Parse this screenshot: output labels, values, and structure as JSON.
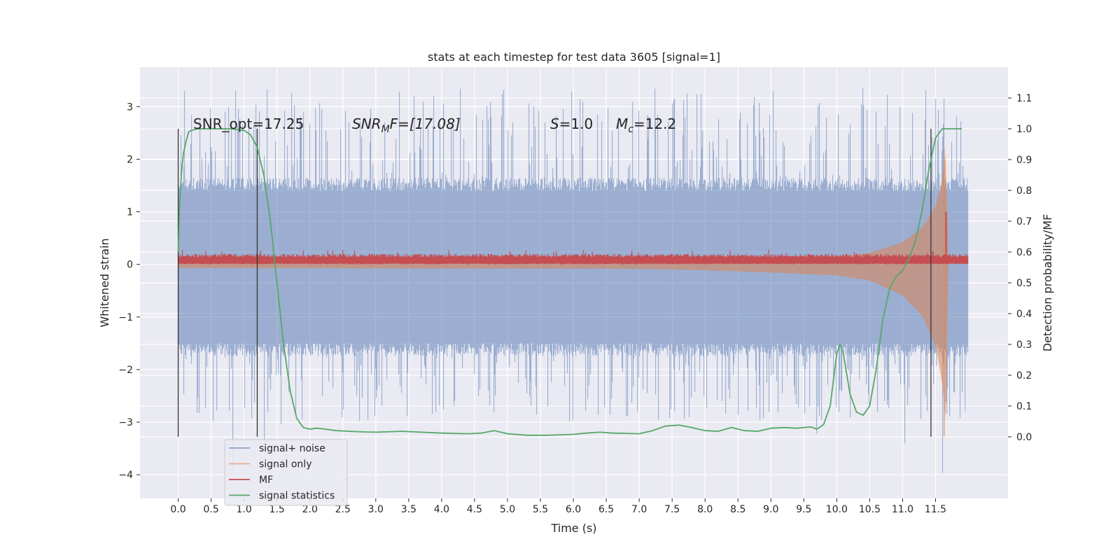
{
  "chart_data": {
    "type": "line",
    "title": "stats at each timestep for test data 3605 [signal=1]",
    "xlabel": "Time (s)",
    "ylabel": "Whitened strain",
    "y2label": "Detection probability/MF",
    "xlim": [
      -0.58,
      12.6
    ],
    "ylim": [
      -4.45,
      3.75
    ],
    "y2lim": [
      -0.2,
      1.2
    ],
    "x_ticks": [
      0.0,
      0.5,
      1.0,
      1.5,
      2.0,
      2.5,
      3.0,
      3.5,
      4.0,
      4.5,
      5.0,
      5.5,
      6.0,
      6.5,
      7.0,
      7.5,
      8.0,
      8.5,
      9.0,
      9.5,
      10.0,
      10.5,
      11.0,
      11.5
    ],
    "x_tick_labels": [
      "0.0",
      "0.5",
      "1.0",
      "1.5",
      "2.0",
      "2.5",
      "3.0",
      "3.5",
      "4.0",
      "4.5",
      "5.0",
      "5.5",
      "6.0",
      "6.5",
      "7.0",
      "7.5",
      "8.0",
      "8.5",
      "9.0",
      "9.5",
      "10.0",
      "10.5",
      "11.0",
      "11.5"
    ],
    "y_ticks": [
      3,
      2,
      1,
      0,
      -1,
      -2,
      -3,
      -4
    ],
    "y_tick_labels": [
      "3",
      "2",
      "1",
      "0",
      "−1",
      "−2",
      "−3",
      "−4"
    ],
    "y2_ticks": [
      1.1,
      1.0,
      0.9,
      0.8,
      0.7,
      0.6,
      0.5,
      0.4,
      0.3,
      0.2,
      0.1,
      0.0
    ],
    "y2_tick_labels": [
      "1.1",
      "1.0",
      "0.9",
      "0.8",
      "0.7",
      "0.6",
      "0.5",
      "0.4",
      "0.3",
      "0.2",
      "0.1",
      "0.0"
    ],
    "grid": true,
    "legend_position": "lower-left",
    "background": "#eaeaf2",
    "annotations": {
      "snr_opt": "SNR_opt=17.25",
      "snr_mf_main": "SNR",
      "snr_mf_sub": "M",
      "snr_mf_rest": "F=[17.08]",
      "s_main": "S",
      "s_rest": "=1.0",
      "mc_main": "M",
      "mc_sub": "c",
      "mc_rest": "=12.2"
    },
    "series": [
      {
        "name": "signal+ noise",
        "color": "#4c72b0",
        "axis": "left",
        "x_range": [
          0.0,
          11.99
        ],
        "envelope_typical": [
          -1.5,
          1.4
        ],
        "extremes": [
          -4.1,
          3.35
        ]
      },
      {
        "name": "signal only",
        "color": "#dd8452",
        "axis": "left",
        "x": [
          0.0,
          7.0,
          8.0,
          9.0,
          10.0,
          10.5,
          11.0,
          11.3,
          11.5,
          11.6,
          11.66,
          11.7
        ],
        "amplitude": [
          0.05,
          0.06,
          0.08,
          0.11,
          0.15,
          0.22,
          0.42,
          0.7,
          1.1,
          1.6,
          2.2,
          0.0
        ]
      },
      {
        "name": "MF",
        "color": "#c44e52",
        "axis": "left",
        "baseline": 0.08,
        "band": [
          0.0,
          0.2
        ],
        "peak": {
          "x": 11.66,
          "y": 1.0
        }
      },
      {
        "name": "signal statistics",
        "color": "#55a868",
        "axis": "right",
        "x": [
          0.0,
          0.02,
          0.05,
          0.08,
          0.12,
          0.16,
          0.2,
          0.3,
          0.5,
          0.8,
          1.0,
          1.1,
          1.2,
          1.3,
          1.4,
          1.5,
          1.6,
          1.7,
          1.8,
          1.9,
          2.0,
          2.1,
          2.2,
          2.4,
          2.6,
          2.8,
          3.0,
          3.4,
          3.6,
          4.0,
          4.4,
          4.6,
          4.8,
          5.0,
          5.3,
          5.6,
          6.0,
          6.2,
          6.4,
          6.6,
          7.0,
          7.2,
          7.4,
          7.6,
          7.8,
          8.0,
          8.2,
          8.4,
          8.6,
          8.8,
          9.0,
          9.2,
          9.4,
          9.6,
          9.7,
          9.8,
          9.9,
          10.0,
          10.05,
          10.1,
          10.2,
          10.3,
          10.4,
          10.5,
          10.6,
          10.7,
          10.8,
          10.9,
          11.0,
          11.1,
          11.2,
          11.3,
          11.4,
          11.5,
          11.6,
          11.7,
          11.8,
          11.9
        ],
        "y": [
          0.6,
          0.74,
          0.86,
          0.92,
          0.96,
          0.99,
          0.995,
          1.0,
          1.0,
          1.0,
          0.995,
          0.98,
          0.94,
          0.85,
          0.7,
          0.5,
          0.3,
          0.15,
          0.06,
          0.03,
          0.025,
          0.028,
          0.026,
          0.02,
          0.018,
          0.016,
          0.015,
          0.018,
          0.016,
          0.012,
          0.01,
          0.012,
          0.02,
          0.01,
          0.005,
          0.005,
          0.008,
          0.012,
          0.015,
          0.012,
          0.01,
          0.02,
          0.035,
          0.038,
          0.03,
          0.02,
          0.018,
          0.03,
          0.02,
          0.018,
          0.028,
          0.03,
          0.028,
          0.032,
          0.025,
          0.04,
          0.1,
          0.27,
          0.3,
          0.27,
          0.14,
          0.08,
          0.07,
          0.1,
          0.22,
          0.38,
          0.48,
          0.52,
          0.54,
          0.58,
          0.64,
          0.74,
          0.87,
          0.97,
          1.0,
          1.0,
          1.0,
          1.0
        ]
      }
    ],
    "vertical_lines": [
      0.0,
      1.2,
      11.43
    ]
  }
}
